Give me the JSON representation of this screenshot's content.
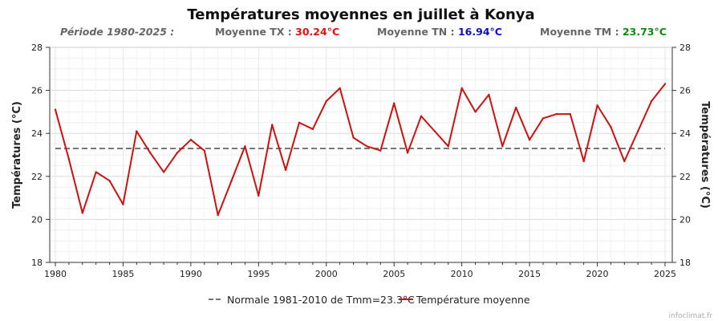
{
  "chart_data": {
    "type": "line",
    "title": "Températures moyennes en juillet à Konya",
    "stats": {
      "period_label": "Période 1980-2025 :",
      "tx_label": "Moyenne TX : ",
      "tx_value": "30.24°C",
      "tn_label": "Moyenne TN : ",
      "tn_value": "16.94°C",
      "tm_label": "Moyenne TM : ",
      "tm_value": "23.73°C"
    },
    "ylabel_left": "Températures (°C)",
    "ylabel_right": "Températures (°C)",
    "xlim": [
      1980,
      2025
    ],
    "ylim": [
      18,
      28
    ],
    "x_ticks": [
      "1980",
      "1985",
      "1990",
      "1995",
      "2000",
      "2005",
      "2010",
      "2015",
      "2020",
      "2025"
    ],
    "y_ticks": [
      "18",
      "20",
      "22",
      "24",
      "26",
      "28"
    ],
    "grid": true,
    "legend_position": "bottom",
    "normal": {
      "name": "Normale 1981-2010 de Tmm=23.3°C",
      "value": 23.3,
      "color": "#777777"
    },
    "series": [
      {
        "name": "Température moyenne",
        "color": "#cc1111",
        "x": [
          1980,
          1981,
          1982,
          1983,
          1984,
          1985,
          1986,
          1987,
          1988,
          1989,
          1990,
          1991,
          1992,
          1993,
          1994,
          1995,
          1996,
          1997,
          1998,
          1999,
          2000,
          2001,
          2002,
          2003,
          2004,
          2005,
          2006,
          2007,
          2008,
          2009,
          2010,
          2011,
          2012,
          2013,
          2014,
          2015,
          2016,
          2017,
          2018,
          2019,
          2020,
          2021,
          2022,
          2023,
          2024,
          2025
        ],
        "values": [
          25.1,
          22.8,
          20.3,
          22.2,
          21.8,
          20.7,
          24.1,
          23.1,
          22.2,
          23.1,
          23.7,
          23.2,
          20.2,
          21.8,
          23.4,
          21.1,
          24.4,
          22.3,
          24.5,
          24.2,
          25.5,
          26.1,
          23.8,
          23.4,
          23.2,
          25.4,
          23.1,
          24.8,
          24.1,
          23.4,
          26.1,
          25.0,
          25.8,
          23.4,
          25.2,
          23.7,
          24.7,
          24.9,
          24.9,
          22.7,
          25.3,
          24.3,
          22.7,
          24.1,
          25.5,
          26.3
        ]
      }
    ],
    "credit": "infoclimat.fr"
  }
}
